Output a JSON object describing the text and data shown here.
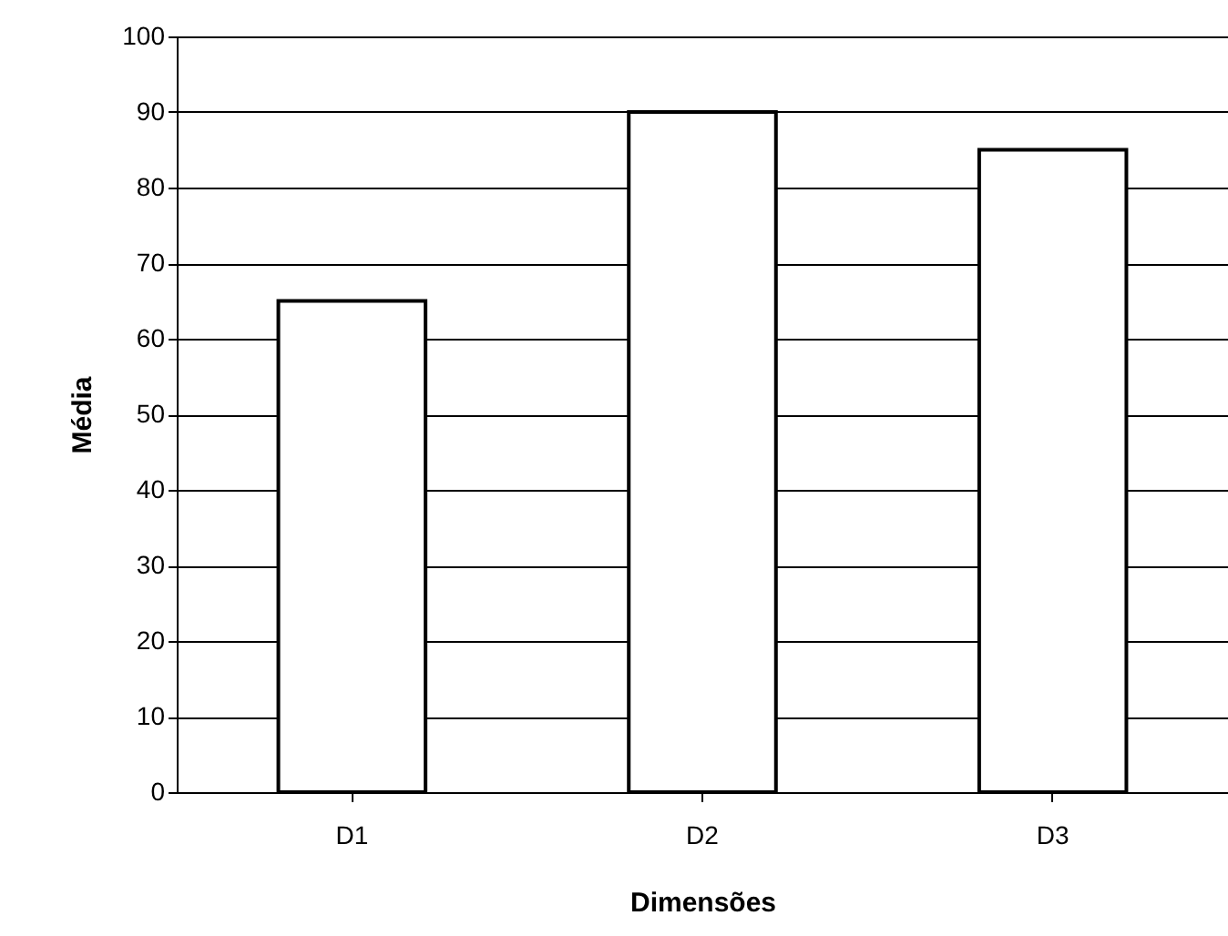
{
  "chart_data": {
    "type": "bar",
    "xlabel": "Dimensões",
    "ylabel": "Média",
    "categories": [
      "D1",
      "D2",
      "D3"
    ],
    "values": [
      65,
      90,
      85
    ],
    "color": "#ffffff",
    "ylim": [
      0,
      100
    ],
    "yticks": [
      0,
      10,
      20,
      30,
      40,
      50,
      60,
      70,
      80,
      90,
      100
    ],
    "grid": "y"
  }
}
